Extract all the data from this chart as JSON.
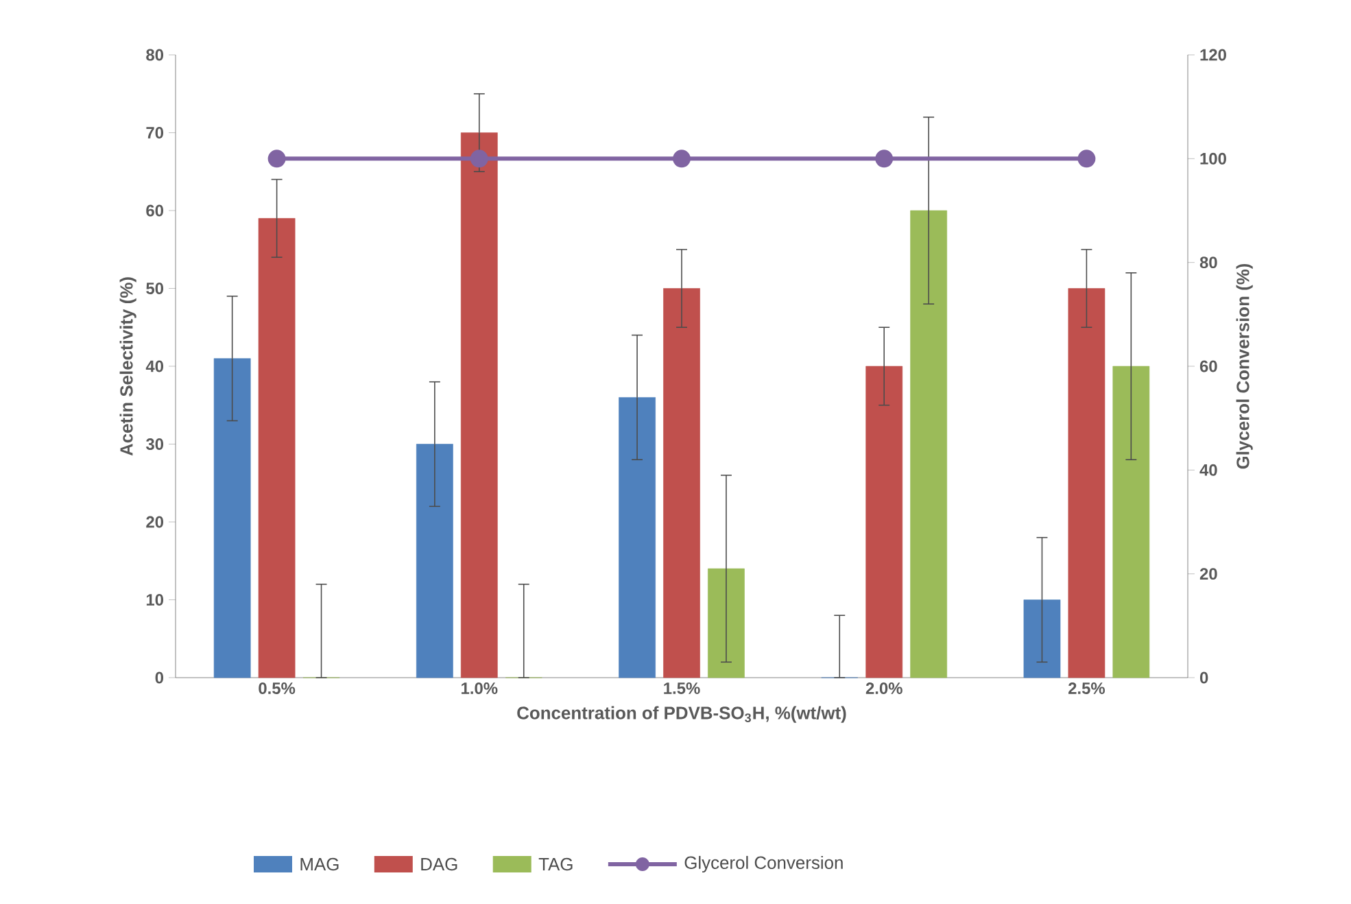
{
  "chart_data": {
    "type": "bar",
    "xlabel": "Concentration of PDVB-SO$_{3}$H, %(wt/wt)",
    "ylabel": "Acetin Selectivity (%)",
    "y2label": "Glycerol Conversion (%)",
    "categories": [
      "0.5%",
      "1.0%",
      "1.5%",
      "2.0%",
      "2.5%"
    ],
    "ylim": [
      0,
      80
    ],
    "yticks": [
      0,
      10,
      20,
      30,
      40,
      50,
      60,
      70,
      80
    ],
    "y2lim": [
      0,
      120
    ],
    "y2ticks": [
      0,
      20,
      40,
      60,
      80,
      100,
      120
    ],
    "legend": "bottom",
    "grid": false,
    "series": [
      {
        "name": "MAG",
        "color": "#4f81bd",
        "values": [
          41,
          30,
          36,
          0,
          10
        ],
        "errors": [
          8,
          8,
          8,
          [
            0,
            8
          ],
          8
        ]
      },
      {
        "name": "DAG",
        "color": "#c0504d",
        "values": [
          59,
          70,
          50,
          40,
          50
        ],
        "errors": [
          5,
          5,
          5,
          5,
          5
        ]
      },
      {
        "name": "TAG",
        "color": "#9bbb59",
        "values": [
          0,
          0,
          14,
          60,
          40
        ],
        "errors": [
          [
            0,
            12
          ],
          [
            0,
            12
          ],
          12,
          12,
          12
        ]
      },
      {
        "name": "Glycerol Conversion",
        "type": "line",
        "axis": "y2",
        "color": "#8064a2",
        "marker": "circle",
        "values": [
          100,
          100,
          100,
          100,
          100
        ]
      }
    ]
  }
}
